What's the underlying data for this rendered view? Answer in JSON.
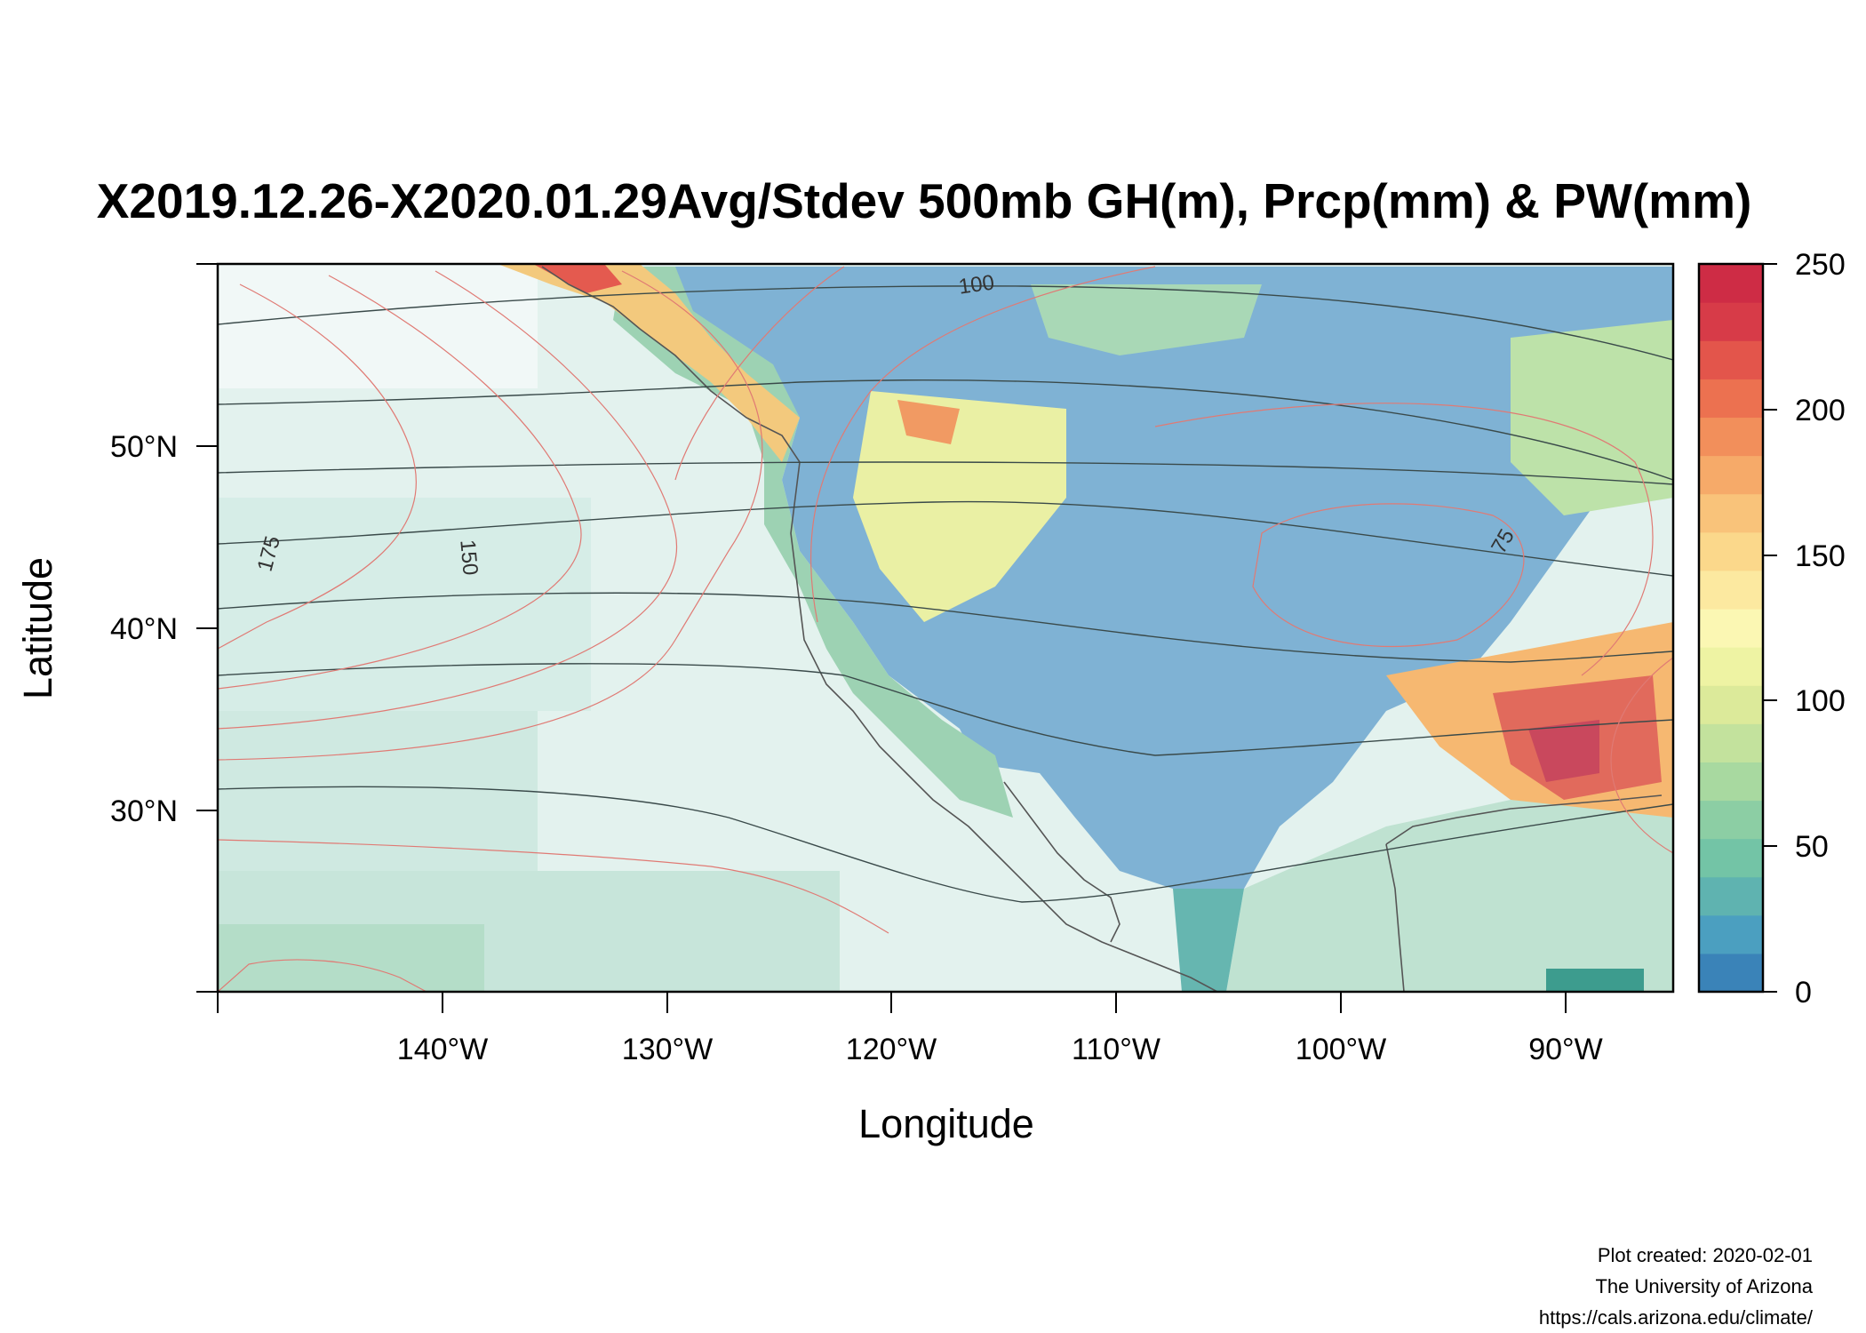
{
  "title": "X2019.12.26-X2020.01.29Avg/Stdev 500mb GH(m), Prcp(mm) & PW(mm)",
  "axes": {
    "xlabel": "Longitude",
    "ylabel": "Latitude",
    "x_ticks": [
      "140°W",
      "130°W",
      "120°W",
      "110°W",
      "100°W",
      "90°W"
    ],
    "y_ticks": [
      "50°N",
      "40°N",
      "30°N"
    ]
  },
  "colorbar": {
    "ticks": [
      "250",
      "200",
      "150",
      "100",
      "50",
      "0"
    ],
    "colors": [
      "#3a83b8",
      "#4b9fc0",
      "#5fb3b0",
      "#73c4a6",
      "#8ccea4",
      "#a8d9a0",
      "#c3e29d",
      "#dcea9a",
      "#eef3a3",
      "#fbf7b3",
      "#fce9a0",
      "#fbd88b",
      "#f9c37a",
      "#f6aa69",
      "#f28f5b",
      "#ec7150",
      "#e3554b",
      "#d73b48",
      "#ce2c45"
    ]
  },
  "contour_labels": [
    "100",
    "175",
    "150",
    "75"
  ],
  "credits": {
    "line1": "Plot created: 2020-02-01",
    "line2": "The University of Arizona",
    "line3": "https://cals.arizona.edu/climate/"
  }
}
